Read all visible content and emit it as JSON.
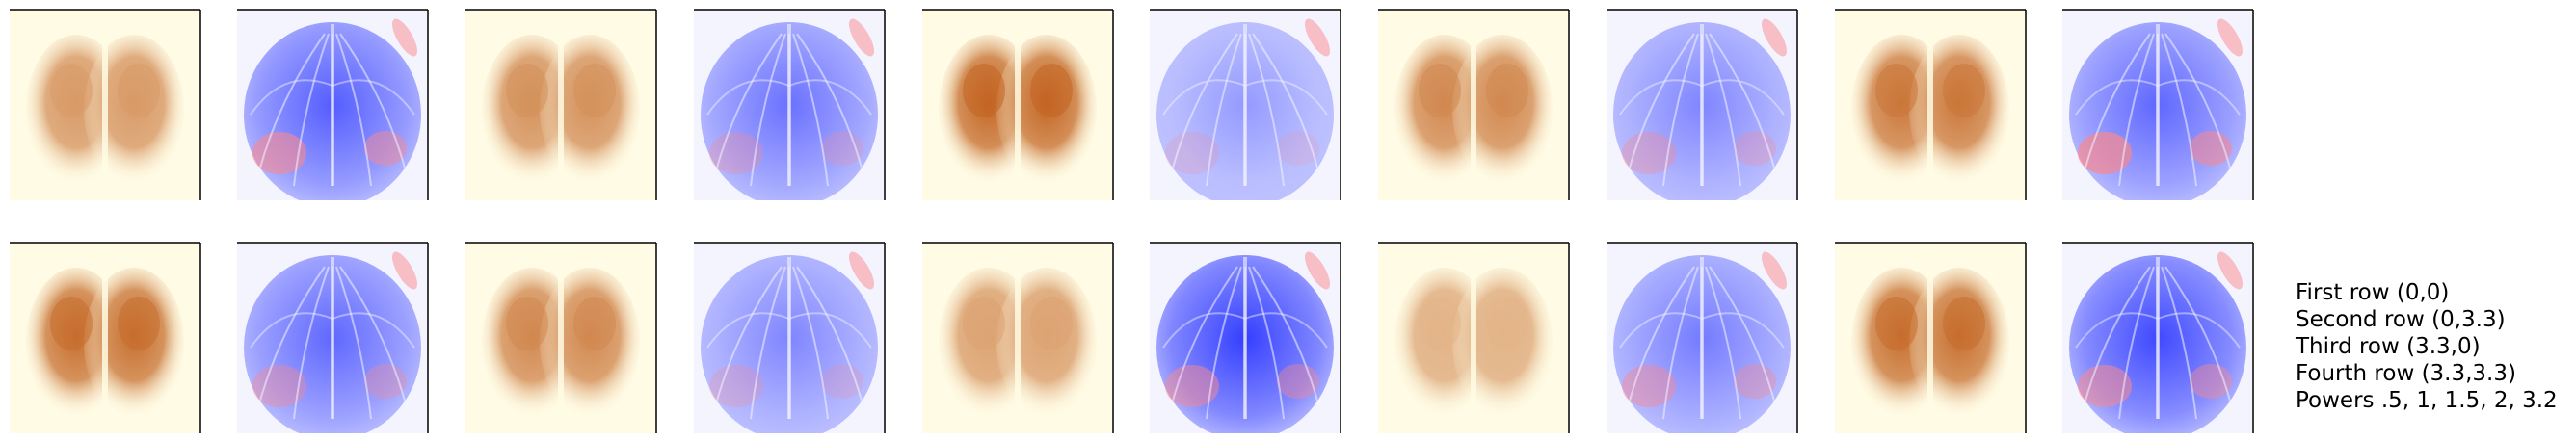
{
  "figure": {
    "rows": 2,
    "columns": 10,
    "colormaps": {
      "even_columns": "ylorbr",
      "odd_columns": "bwr"
    },
    "colors": {
      "background": "#ffffff",
      "ylorbr_low": "#fffbe4",
      "ylorbr_high": "#b84a00",
      "bwr_blue": "#1f2bff",
      "bwr_white": "#f4f4ff",
      "bwr_red": "#ff3030"
    },
    "panels": [
      {
        "cmap": "ylorbr",
        "intensity": 0.55
      },
      {
        "cmap": "bwr",
        "intensity": 0.75,
        "red_bottom": 0.6
      },
      {
        "cmap": "ylorbr",
        "intensity": 0.6
      },
      {
        "cmap": "bwr",
        "intensity": 0.65,
        "red_bottom": 0.3
      },
      {
        "cmap": "ylorbr",
        "intensity": 0.85
      },
      {
        "cmap": "bwr",
        "intensity": 0.45,
        "red_bottom": 0.2
      },
      {
        "cmap": "ylorbr",
        "intensity": 0.65
      },
      {
        "cmap": "bwr",
        "intensity": 0.55,
        "red_bottom": 0.35
      },
      {
        "cmap": "ylorbr",
        "intensity": 0.75
      },
      {
        "cmap": "bwr",
        "intensity": 0.7,
        "red_bottom": 0.7
      },
      {
        "cmap": "ylorbr",
        "intensity": 0.8
      },
      {
        "cmap": "bwr",
        "intensity": 0.7,
        "red_bottom": 0.4
      },
      {
        "cmap": "ylorbr",
        "intensity": 0.65
      },
      {
        "cmap": "bwr",
        "intensity": 0.55,
        "red_bottom": 0.25
      },
      {
        "cmap": "ylorbr",
        "intensity": 0.5
      },
      {
        "cmap": "bwr",
        "intensity": 0.9,
        "red_bottom": 0.5
      },
      {
        "cmap": "ylorbr",
        "intensity": 0.4
      },
      {
        "cmap": "bwr",
        "intensity": 0.6,
        "red_bottom": 0.45
      },
      {
        "cmap": "ylorbr",
        "intensity": 0.8
      },
      {
        "cmap": "bwr",
        "intensity": 0.85,
        "red_bottom": 0.55
      }
    ]
  },
  "legend": {
    "lines": [
      "First row (0,0)",
      "Second row (0,3.3)",
      "Third row (3.3,0)",
      "Fourth row (3.3,3.3)",
      "Powers .5, 1, 1.5, 2, 3.2"
    ]
  }
}
